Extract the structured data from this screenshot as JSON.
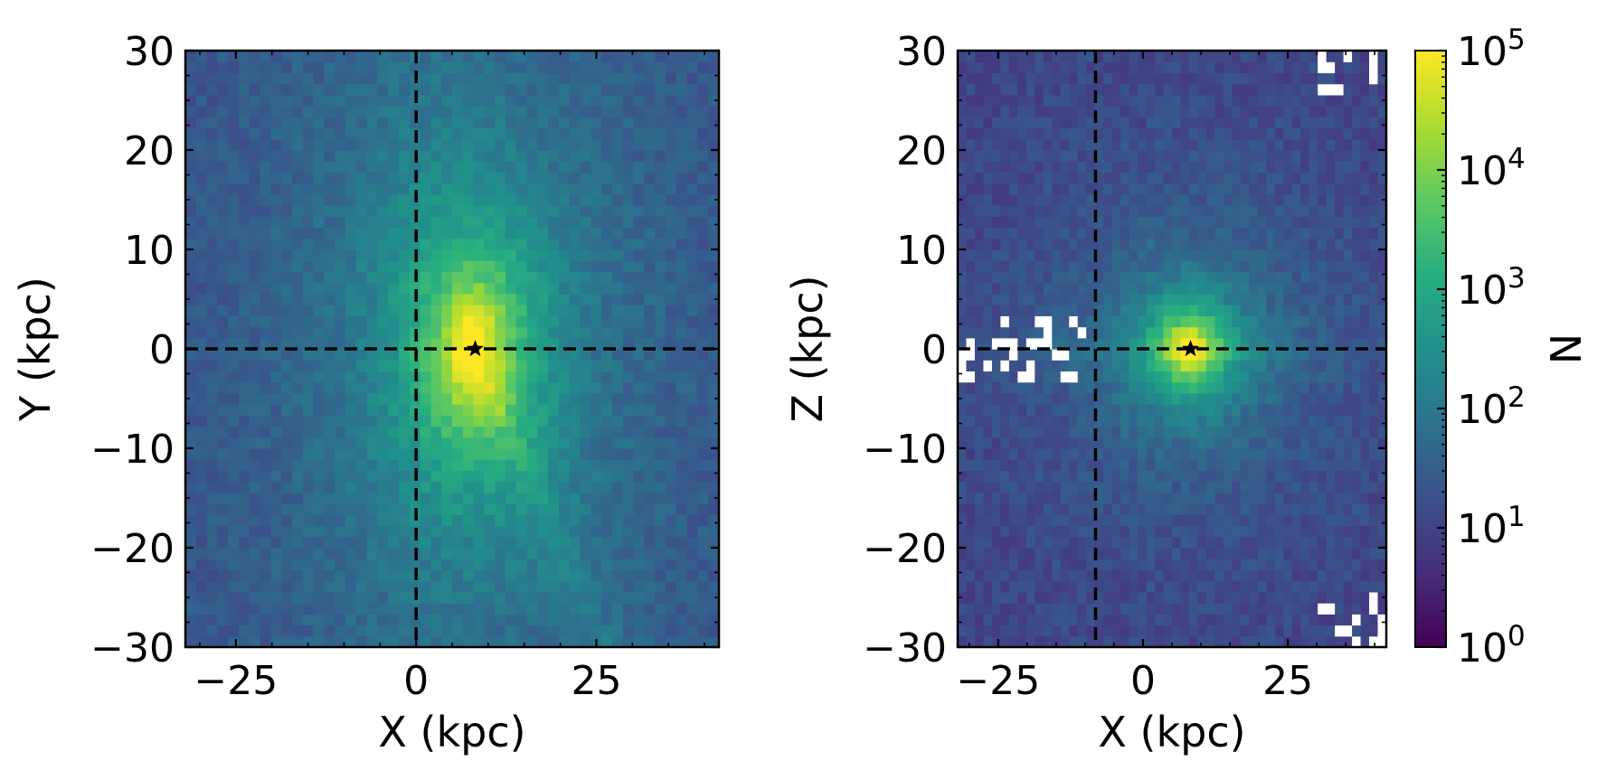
{
  "chart_data": [
    {
      "type": "heatmap",
      "title": "",
      "xlabel": "X (kpc)",
      "ylabel": "Y (kpc)",
      "xlim": [
        -32,
        42
      ],
      "ylim": [
        -30,
        30
      ],
      "x_ticks": [
        -25,
        0,
        25
      ],
      "x_tick_labels": [
        "−25",
        "0",
        "25"
      ],
      "y_ticks": [
        30,
        20,
        10,
        0,
        -10,
        -20,
        -30
      ],
      "y_tick_labels": [
        "30",
        "20",
        "10",
        "0",
        "−10",
        "−20",
        "−30"
      ],
      "reference_lines": {
        "vertical_x": 0,
        "horizontal_y": 0,
        "style": "dashed",
        "color": "#000000"
      },
      "marker": {
        "symbol": "star",
        "x": 8.2,
        "y": 0
      },
      "density": {
        "peak_xy": [
          8,
          0
        ],
        "peak_log10_N": 5.0,
        "notes": "bright core around the star marker, broad halo, fainter stream extending toward lower right"
      },
      "colormap": "viridis"
    },
    {
      "type": "heatmap",
      "title": "",
      "xlabel": "X (kpc)",
      "ylabel": "Z (kpc)",
      "xlim": [
        -32,
        42
      ],
      "ylim": [
        -30,
        30
      ],
      "x_ticks": [
        -25,
        0,
        25
      ],
      "x_tick_labels": [
        "−25",
        "0",
        "25"
      ],
      "y_ticks": [
        30,
        20,
        10,
        0,
        -10,
        -20,
        -30
      ],
      "y_tick_labels": [
        "30",
        "20",
        "10",
        "0",
        "−10",
        "−20",
        "−30"
      ],
      "reference_lines": {
        "vertical_x": -8.2,
        "horizontal_y": 0,
        "style": "dashed",
        "color": "#000000"
      },
      "marker": {
        "symbol": "star",
        "x": 8.2,
        "y": 0
      },
      "density": {
        "peak_xy": [
          8,
          0
        ],
        "peak_log10_N": 5.0,
        "notes": "compact bright core flattened along Z=0, thin disk band, empty bins (white) near left disk edge and corners"
      },
      "colormap": "viridis"
    }
  ],
  "colorbar": {
    "label": "N",
    "scale": "log",
    "range": [
      1,
      100000
    ],
    "tick_labels": [
      {
        "base": "10",
        "exp": "5"
      },
      {
        "base": "10",
        "exp": "4"
      },
      {
        "base": "10",
        "exp": "3"
      },
      {
        "base": "10",
        "exp": "2"
      },
      {
        "base": "10",
        "exp": "1"
      },
      {
        "base": "10",
        "exp": "0"
      }
    ]
  }
}
